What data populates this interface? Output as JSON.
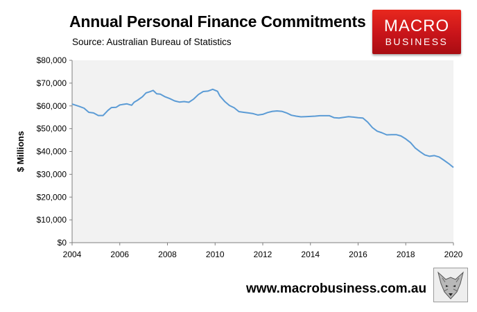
{
  "header": {
    "title": "Annual Personal Finance Commitments",
    "source": "Source: Australian Bureau of Statistics"
  },
  "logo": {
    "line1": "MACRO",
    "line2": "BUSINESS"
  },
  "footer": {
    "url": "www.macrobusiness.com.au"
  },
  "colors": {
    "line": "#5b9bd5",
    "plot_bg": "#f2f2f2",
    "logo_red": "#d4161c"
  },
  "icons": {
    "footer_image": "fox-face-icon"
  },
  "chart_data": {
    "type": "line",
    "title": "Annual Personal Finance Commitments",
    "xlabel": "",
    "ylabel": "$ Millions",
    "xlim": [
      2004,
      2020
    ],
    "ylim": [
      0,
      80000
    ],
    "grid": false,
    "xticks": [
      2004,
      2006,
      2008,
      2010,
      2012,
      2014,
      2016,
      2018,
      2020
    ],
    "xtick_labels": [
      "2004",
      "2006",
      "2008",
      "2010",
      "2012",
      "2014",
      "2016",
      "2018",
      "2020"
    ],
    "yticks": [
      0,
      10000,
      20000,
      30000,
      40000,
      50000,
      60000,
      70000,
      80000
    ],
    "ytick_labels": [
      "$0",
      "$10,000",
      "$20,000",
      "$30,000",
      "$40,000",
      "$50,000",
      "$60,000",
      "$70,000",
      "$80,000"
    ],
    "series": [
      {
        "x": [
          2004.0,
          2004.3,
          2004.5,
          2004.7,
          2004.9,
          2005.1,
          2005.3,
          2005.5,
          2005.65,
          2005.85,
          2006.0,
          2006.1,
          2006.3,
          2006.5,
          2006.6,
          2006.75,
          2006.95,
          2007.1,
          2007.25,
          2007.4,
          2007.55,
          2007.7,
          2007.9,
          2008.1,
          2008.3,
          2008.5,
          2008.7,
          2008.9,
          2009.1,
          2009.3,
          2009.5,
          2009.7,
          2009.9,
          2010.1,
          2010.2,
          2010.4,
          2010.6,
          2010.8,
          2011.0,
          2011.2,
          2011.4,
          2011.6,
          2011.8,
          2012.0,
          2012.2,
          2012.4,
          2012.6,
          2012.8,
          2013.0,
          2013.2,
          2013.4,
          2013.6,
          2013.8,
          2014.0,
          2014.2,
          2014.4,
          2014.6,
          2014.8,
          2015.0,
          2015.2,
          2015.4,
          2015.6,
          2015.8,
          2016.0,
          2016.2,
          2016.4,
          2016.6,
          2016.8,
          2017.0,
          2017.2,
          2017.4,
          2017.6,
          2017.8,
          2018.0,
          2018.2,
          2018.4,
          2018.6,
          2018.8,
          2019.0,
          2019.2,
          2019.4,
          2019.6,
          2019.8,
          2020.0
        ],
        "y": [
          60800,
          59800,
          59000,
          57200,
          56900,
          55800,
          55800,
          58000,
          59300,
          59400,
          60400,
          60600,
          60900,
          60300,
          61600,
          62500,
          64000,
          65700,
          66200,
          66800,
          65300,
          65200,
          64000,
          63200,
          62200,
          61700,
          61900,
          61600,
          63000,
          65000,
          66300,
          66500,
          67300,
          66400,
          64400,
          62000,
          60200,
          59200,
          57500,
          57200,
          56900,
          56600,
          56000,
          56300,
          57100,
          57600,
          57800,
          57600,
          56900,
          55900,
          55500,
          55200,
          55300,
          55400,
          55500,
          55700,
          55700,
          55700,
          54800,
          54700,
          55000,
          55300,
          55100,
          54800,
          54700,
          52900,
          50500,
          48900,
          48200,
          47300,
          47400,
          47400,
          46800,
          45500,
          43900,
          41500,
          39900,
          38500,
          37900,
          38200,
          37600,
          36200,
          34700,
          33000
        ]
      }
    ]
  }
}
